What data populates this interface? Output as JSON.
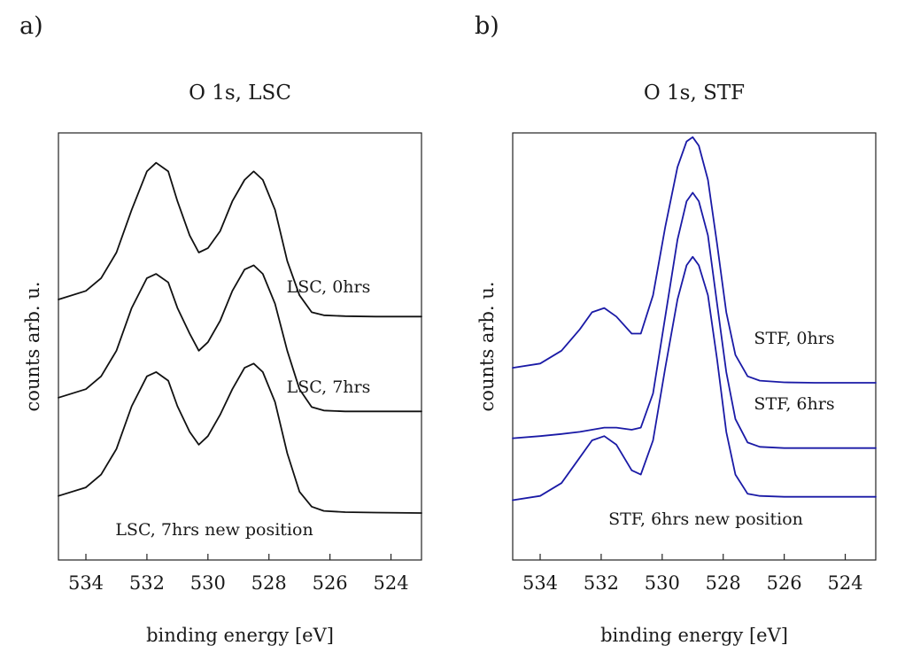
{
  "chart_data": [
    {
      "type": "line",
      "panel_label": "a)",
      "title": "O 1s, LSC",
      "xlabel": "binding energy [eV]",
      "ylabel": "counts arb. u.",
      "xlim": [
        534.9,
        523.0
      ],
      "x_reversed": true,
      "ylim": [
        0,
        1.0
      ],
      "xticks": [
        534,
        532,
        530,
        528,
        526,
        524
      ],
      "tick_labels": [
        "534",
        "532",
        "530",
        "528",
        "526",
        "524"
      ],
      "color": "#111111",
      "series": [
        {
          "name": "LSC, 0hrs",
          "label": "LSC, 0hrs",
          "x": [
            534.9,
            534.0,
            533.5,
            533.0,
            532.5,
            532.0,
            531.7,
            531.3,
            531.0,
            530.6,
            530.3,
            530.0,
            529.6,
            529.2,
            528.8,
            528.5,
            528.2,
            527.8,
            527.4,
            527.0,
            526.6,
            526.2,
            525.5,
            524.5,
            523.0
          ],
          "y": [
            0.61,
            0.63,
            0.66,
            0.72,
            0.82,
            0.91,
            0.93,
            0.91,
            0.84,
            0.76,
            0.72,
            0.73,
            0.77,
            0.84,
            0.89,
            0.91,
            0.89,
            0.82,
            0.7,
            0.62,
            0.58,
            0.573,
            0.571,
            0.57,
            0.57
          ]
        },
        {
          "name": "LSC, 7hrs",
          "label": "LSC, 7hrs",
          "x": [
            534.9,
            534.0,
            533.5,
            533.0,
            532.5,
            532.0,
            531.7,
            531.3,
            531.0,
            530.6,
            530.3,
            530.0,
            529.6,
            529.2,
            528.8,
            528.5,
            528.2,
            527.8,
            527.4,
            527.0,
            526.6,
            526.2,
            525.5,
            524.5,
            523.0
          ],
          "y": [
            0.38,
            0.4,
            0.43,
            0.49,
            0.59,
            0.66,
            0.67,
            0.65,
            0.59,
            0.53,
            0.49,
            0.51,
            0.56,
            0.63,
            0.68,
            0.69,
            0.67,
            0.6,
            0.49,
            0.4,
            0.358,
            0.35,
            0.348,
            0.348,
            0.348
          ]
        },
        {
          "name": "LSC, 7hrs new position",
          "label": "LSC, 7hrs new position",
          "x": [
            534.9,
            534.0,
            533.5,
            533.0,
            532.5,
            532.0,
            531.7,
            531.3,
            531.0,
            530.6,
            530.3,
            530.0,
            529.6,
            529.2,
            528.8,
            528.5,
            528.2,
            527.8,
            527.4,
            527.0,
            526.6,
            526.2,
            525.5,
            524.5,
            523.0
          ],
          "y": [
            0.15,
            0.17,
            0.2,
            0.26,
            0.36,
            0.43,
            0.44,
            0.42,
            0.36,
            0.3,
            0.27,
            0.29,
            0.34,
            0.4,
            0.45,
            0.46,
            0.44,
            0.37,
            0.25,
            0.16,
            0.125,
            0.115,
            0.112,
            0.111,
            0.11
          ]
        }
      ]
    },
    {
      "type": "line",
      "panel_label": "b)",
      "title": "O 1s, STF",
      "xlabel": "binding energy [eV]",
      "ylabel": "counts arb. u.",
      "xlim": [
        534.9,
        523.0
      ],
      "x_reversed": true,
      "ylim": [
        0,
        1.0
      ],
      "xticks": [
        534,
        532,
        530,
        528,
        526,
        524
      ],
      "tick_labels": [
        "534",
        "532",
        "530",
        "528",
        "526",
        "524"
      ],
      "color": "#1a1aa6",
      "series": [
        {
          "name": "STF, 0hrs",
          "label": "STF, 0hrs",
          "x": [
            534.9,
            534.0,
            533.3,
            532.7,
            532.3,
            531.9,
            531.5,
            531.0,
            530.7,
            530.3,
            529.9,
            529.5,
            529.2,
            529.0,
            528.8,
            528.5,
            528.2,
            527.9,
            527.6,
            527.2,
            526.8,
            526.0,
            525.0,
            523.0
          ],
          "y": [
            0.45,
            0.46,
            0.49,
            0.54,
            0.58,
            0.59,
            0.57,
            0.53,
            0.53,
            0.62,
            0.78,
            0.92,
            0.98,
            0.99,
            0.97,
            0.89,
            0.74,
            0.58,
            0.48,
            0.43,
            0.42,
            0.416,
            0.415,
            0.415
          ]
        },
        {
          "name": "STF, 6hrs",
          "label": "STF, 6hrs",
          "x": [
            534.9,
            534.0,
            533.3,
            532.7,
            532.3,
            531.9,
            531.5,
            531.0,
            530.7,
            530.3,
            529.9,
            529.5,
            529.2,
            529.0,
            528.8,
            528.5,
            528.2,
            527.9,
            527.6,
            527.2,
            526.8,
            526.0,
            525.0,
            523.0
          ],
          "y": [
            0.285,
            0.29,
            0.295,
            0.3,
            0.305,
            0.31,
            0.31,
            0.305,
            0.31,
            0.39,
            0.57,
            0.75,
            0.84,
            0.86,
            0.84,
            0.76,
            0.6,
            0.44,
            0.33,
            0.275,
            0.265,
            0.262,
            0.262,
            0.262
          ]
        },
        {
          "name": "STF, 6hrs new position",
          "label": "STF, 6hrs new position",
          "x": [
            534.9,
            534.0,
            533.3,
            532.7,
            532.3,
            531.9,
            531.5,
            531.0,
            530.7,
            530.3,
            529.9,
            529.5,
            529.2,
            529.0,
            528.8,
            528.5,
            528.2,
            527.9,
            527.6,
            527.2,
            526.8,
            526.0,
            525.0,
            523.0
          ],
          "y": [
            0.14,
            0.15,
            0.18,
            0.24,
            0.28,
            0.29,
            0.27,
            0.21,
            0.2,
            0.28,
            0.45,
            0.61,
            0.69,
            0.71,
            0.69,
            0.62,
            0.47,
            0.3,
            0.2,
            0.155,
            0.15,
            0.148,
            0.148,
            0.148
          ]
        }
      ]
    }
  ]
}
